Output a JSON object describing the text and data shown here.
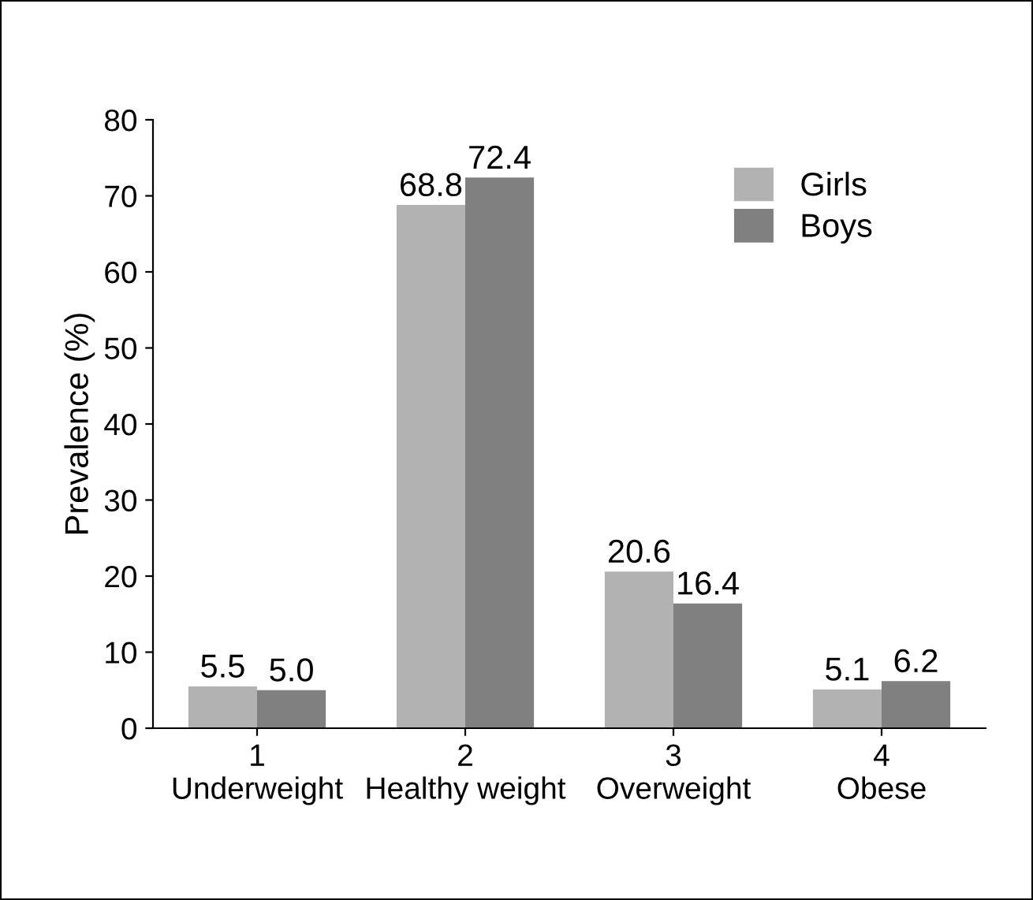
{
  "chart_data": {
    "type": "bar",
    "ylabel": "Prevalence (%)",
    "categories": [
      "1\nUnderweight",
      "2\nHealthy weight",
      "3\nOverweight",
      "4\nObese"
    ],
    "series": [
      {
        "name": "Girls",
        "color": "#b2b2b2",
        "values": [
          5.5,
          68.8,
          20.6,
          5.1
        ],
        "value_labels": [
          "5.5",
          "68.8",
          "20.6",
          "5.1"
        ]
      },
      {
        "name": "Boys",
        "color": "#808080",
        "values": [
          5.0,
          72.4,
          16.4,
          6.2
        ],
        "value_labels": [
          "5.0",
          "72.4",
          "16.4",
          "6.2"
        ]
      }
    ],
    "ylim": [
      0,
      80
    ],
    "yticks": [
      0,
      10,
      20,
      30,
      40,
      50,
      60,
      70,
      80
    ],
    "grid": false,
    "legend": "top right"
  }
}
